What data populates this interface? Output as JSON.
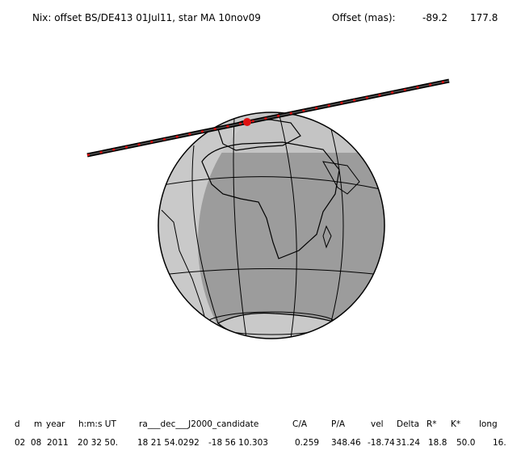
{
  "header": {
    "title": "Nix: offset BS/DE413 01Jul11, star MA 10nov09",
    "offset_label": "Offset (mas):",
    "offset_values": [
      "-89.2",
      "177.8"
    ]
  },
  "table": {
    "columns": [
      "d",
      "m",
      "year",
      "h:m:s UT",
      "ra___dec___J2000_candidate",
      "C/A",
      "P/A",
      "vel",
      "Delta",
      "R*",
      "K*",
      "long"
    ],
    "row": [
      "02",
      "08",
      "2011",
      "20 32 50.",
      "18 21 54.0292",
      "-18 56 10.303",
      "0.259",
      "348.46",
      "-18.74",
      "31.24",
      "18.8",
      "50.0",
      "16."
    ]
  }
}
